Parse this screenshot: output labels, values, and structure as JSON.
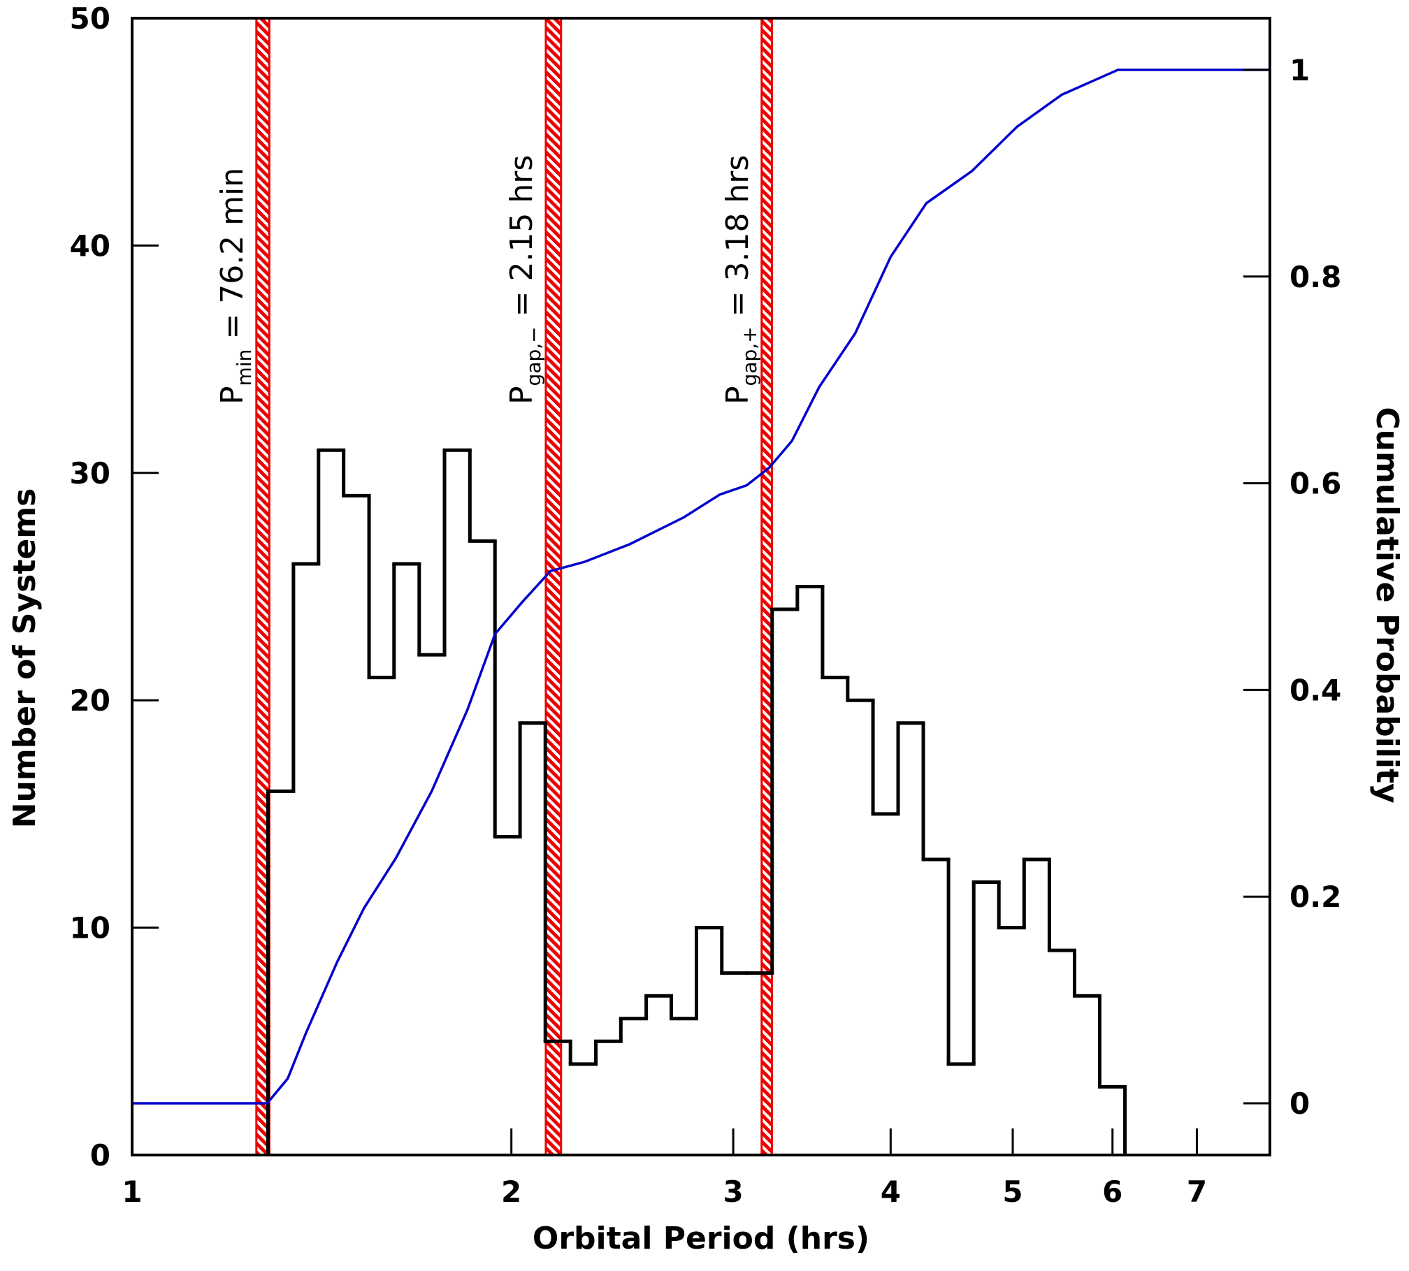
{
  "chart_data": {
    "type": "histogram",
    "xlabel": "Orbital Period (hrs)",
    "ylabel": "Number of Systems",
    "y2label": "Cumulative Probability",
    "xlog": true,
    "xlim": [
      1,
      8
    ],
    "xticks": [
      1,
      2,
      3,
      4,
      5,
      6,
      7
    ],
    "ylim": [
      0,
      50
    ],
    "yticks": [
      0,
      10,
      20,
      30,
      40,
      50
    ],
    "y2lim": [
      -0.05,
      1.05
    ],
    "y2ticks": [
      0,
      0.2,
      0.4,
      0.6,
      0.8,
      1
    ],
    "color": "#000000",
    "bins": [
      1.282,
      1.343,
      1.406,
      1.472,
      1.542,
      1.614,
      1.69,
      1.77,
      1.854,
      1.941,
      2.032,
      2.128,
      2.228,
      2.334,
      2.443,
      2.559,
      2.679,
      2.805,
      2.938,
      3.076,
      3.221,
      3.373,
      3.532,
      3.698,
      3.873,
      4.055,
      4.246,
      4.446,
      4.656,
      4.875,
      5.105,
      5.346,
      5.598,
      5.861,
      6.138
    ],
    "values": [
      16,
      26,
      31,
      29,
      21,
      26,
      22,
      31,
      27,
      14,
      19,
      5,
      4,
      5,
      6,
      7,
      6,
      10,
      8,
      8,
      24,
      25,
      21,
      20,
      15,
      19,
      13,
      4,
      12,
      10,
      13,
      9,
      7,
      3
    ],
    "series": [
      {
        "type": "line",
        "axis": "y2",
        "color": "#0000cc",
        "x": [
          1,
          1.28,
          1.329,
          1.374,
          1.455,
          1.528,
          1.619,
          1.729,
          1.846,
          1.941,
          2.04,
          2.148,
          2.287,
          2.483,
          2.741,
          2.927,
          3.075,
          3.204,
          3.34,
          3.51,
          3.749,
          4.0,
          4.27,
          4.64,
          5.04,
          5.47,
          6.06,
          8
        ],
        "values": [
          0,
          0,
          0.024,
          0.068,
          0.137,
          0.189,
          0.237,
          0.302,
          0.381,
          0.454,
          0.485,
          0.515,
          0.524,
          0.541,
          0.567,
          0.589,
          0.598,
          0.615,
          0.641,
          0.693,
          0.745,
          0.819,
          0.871,
          0.902,
          0.945,
          0.976,
          1,
          1
        ]
      }
    ],
    "bands": [
      {
        "xmin": 1.255,
        "xmax": 1.285,
        "color": "#ee0000",
        "symbol": "P",
        "subscript": "min",
        "text": " = 76.2 min"
      },
      {
        "xmin": 2.13,
        "xmax": 2.19,
        "color": "#ee0000",
        "symbol": "P",
        "subscript": "gap,−",
        "text": " = 2.15 hrs"
      },
      {
        "xmin": 3.16,
        "xmax": 3.22,
        "color": "#ee0000",
        "symbol": "P",
        "subscript": "gap,+",
        "text": " = 3.18 hrs"
      }
    ]
  }
}
